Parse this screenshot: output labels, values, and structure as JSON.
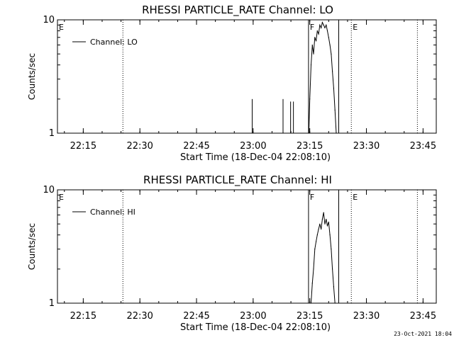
{
  "chart_data": [
    {
      "type": "line",
      "title": "RHESSI PARTICLE_RATE Channel: LO",
      "xlabel": "Start Time (18-Dec-04 22:08:10)",
      "ylabel": "Counts/sec",
      "y_scale": "log",
      "ylim": [
        1,
        10
      ],
      "xlim": [
        "22:08:10",
        "23:48:30"
      ],
      "x_tick_labels": [
        "22:15",
        "22:30",
        "22:45",
        "23:00",
        "23:15",
        "23:30",
        "23:45"
      ],
      "x_ticks": [
        "22:15",
        "22:30",
        "22:45",
        "23:00",
        "23:15",
        "23:30",
        "23:45"
      ],
      "y_tick_labels": [
        "10",
        "1"
      ],
      "y_ticks": [
        10,
        1
      ],
      "legend": {
        "entries": [
          "Channel: LO"
        ],
        "placement": "top-left"
      },
      "grid": false,
      "annotations": [
        {
          "label": "E",
          "at": "22:08:10",
          "style": "dotted"
        },
        {
          "label": "",
          "at": "22:25:30",
          "style": "dotted"
        },
        {
          "label": "F",
          "at": "23:14:40",
          "style": "solid"
        },
        {
          "label": "",
          "at": "23:22:40",
          "style": "solid"
        },
        {
          "label": "E",
          "at": "23:26:00",
          "style": "dotted"
        },
        {
          "label": "",
          "at": "23:43:30",
          "style": "dotted"
        }
      ],
      "series": [
        {
          "name": "Channel: LO",
          "spikes": [
            {
              "x": "22:59:45",
              "y": 2.0
            },
            {
              "x": "23:07:55",
              "y": 2.0
            },
            {
              "x": "23:09:55",
              "y": 1.9
            },
            {
              "x": "23:10:40",
              "y": 1.9
            }
          ],
          "points": [
            {
              "x": "23:14:45",
              "y": 1.0
            },
            {
              "x": "23:15:00",
              "y": 2.0
            },
            {
              "x": "23:15:20",
              "y": 4.0
            },
            {
              "x": "23:15:40",
              "y": 6.0
            },
            {
              "x": "23:16:00",
              "y": 5.0
            },
            {
              "x": "23:16:20",
              "y": 7.0
            },
            {
              "x": "23:16:40",
              "y": 6.5
            },
            {
              "x": "23:17:00",
              "y": 8.0
            },
            {
              "x": "23:17:20",
              "y": 7.5
            },
            {
              "x": "23:17:40",
              "y": 9.0
            },
            {
              "x": "23:18:00",
              "y": 8.5
            },
            {
              "x": "23:18:20",
              "y": 9.5
            },
            {
              "x": "23:18:40",
              "y": 9.0
            },
            {
              "x": "23:19:00",
              "y": 8.5
            },
            {
              "x": "23:19:20",
              "y": 9.0
            },
            {
              "x": "23:19:40",
              "y": 8.0
            },
            {
              "x": "23:20:00",
              "y": 7.0
            },
            {
              "x": "23:20:20",
              "y": 6.0
            },
            {
              "x": "23:20:40",
              "y": 5.0
            },
            {
              "x": "23:21:00",
              "y": 3.5
            },
            {
              "x": "23:21:20",
              "y": 2.5
            },
            {
              "x": "23:21:40",
              "y": 1.6
            },
            {
              "x": "23:22:00",
              "y": 1.0
            }
          ]
        }
      ]
    },
    {
      "type": "line",
      "title": "RHESSI PARTICLE_RATE Channel: HI",
      "xlabel": "Start Time (18-Dec-04 22:08:10)",
      "ylabel": "Counts/sec",
      "y_scale": "log",
      "ylim": [
        1,
        10
      ],
      "xlim": [
        "22:08:10",
        "23:48:30"
      ],
      "x_tick_labels": [
        "22:15",
        "22:30",
        "22:45",
        "23:00",
        "23:15",
        "23:30",
        "23:45"
      ],
      "x_ticks": [
        "22:15",
        "22:30",
        "22:45",
        "23:00",
        "23:15",
        "23:30",
        "23:45"
      ],
      "y_tick_labels": [
        "10",
        "1"
      ],
      "y_ticks": [
        10,
        1
      ],
      "legend": {
        "entries": [
          "Channel: HI"
        ],
        "placement": "top-left"
      },
      "grid": false,
      "annotations": [
        {
          "label": "E",
          "at": "22:08:10",
          "style": "dotted"
        },
        {
          "label": "",
          "at": "22:25:30",
          "style": "dotted"
        },
        {
          "label": "F",
          "at": "23:14:40",
          "style": "solid"
        },
        {
          "label": "",
          "at": "23:22:40",
          "style": "solid"
        },
        {
          "label": "E",
          "at": "23:26:00",
          "style": "dotted"
        },
        {
          "label": "",
          "at": "23:43:30",
          "style": "dotted"
        }
      ],
      "series": [
        {
          "name": "Channel: HI",
          "spikes": [],
          "points": [
            {
              "x": "23:15:20",
              "y": 1.0
            },
            {
              "x": "23:15:40",
              "y": 1.5
            },
            {
              "x": "23:16:00",
              "y": 2.0
            },
            {
              "x": "23:16:20",
              "y": 3.0
            },
            {
              "x": "23:16:40",
              "y": 3.5
            },
            {
              "x": "23:17:00",
              "y": 4.0
            },
            {
              "x": "23:17:20",
              "y": 4.5
            },
            {
              "x": "23:17:40",
              "y": 5.0
            },
            {
              "x": "23:18:00",
              "y": 4.5
            },
            {
              "x": "23:18:20",
              "y": 5.5
            },
            {
              "x": "23:18:40",
              "y": 6.3
            },
            {
              "x": "23:19:00",
              "y": 5.0
            },
            {
              "x": "23:19:20",
              "y": 5.5
            },
            {
              "x": "23:19:40",
              "y": 4.8
            },
            {
              "x": "23:20:00",
              "y": 5.2
            },
            {
              "x": "23:20:20",
              "y": 4.0
            },
            {
              "x": "23:20:40",
              "y": 3.0
            },
            {
              "x": "23:21:00",
              "y": 2.0
            },
            {
              "x": "23:21:20",
              "y": 1.4
            },
            {
              "x": "23:21:40",
              "y": 1.0
            }
          ]
        }
      ]
    }
  ],
  "footer": {
    "timestamp": "23-Oct-2021 18:04"
  },
  "colors": {
    "foreground": "#000000",
    "background": "#ffffff"
  }
}
